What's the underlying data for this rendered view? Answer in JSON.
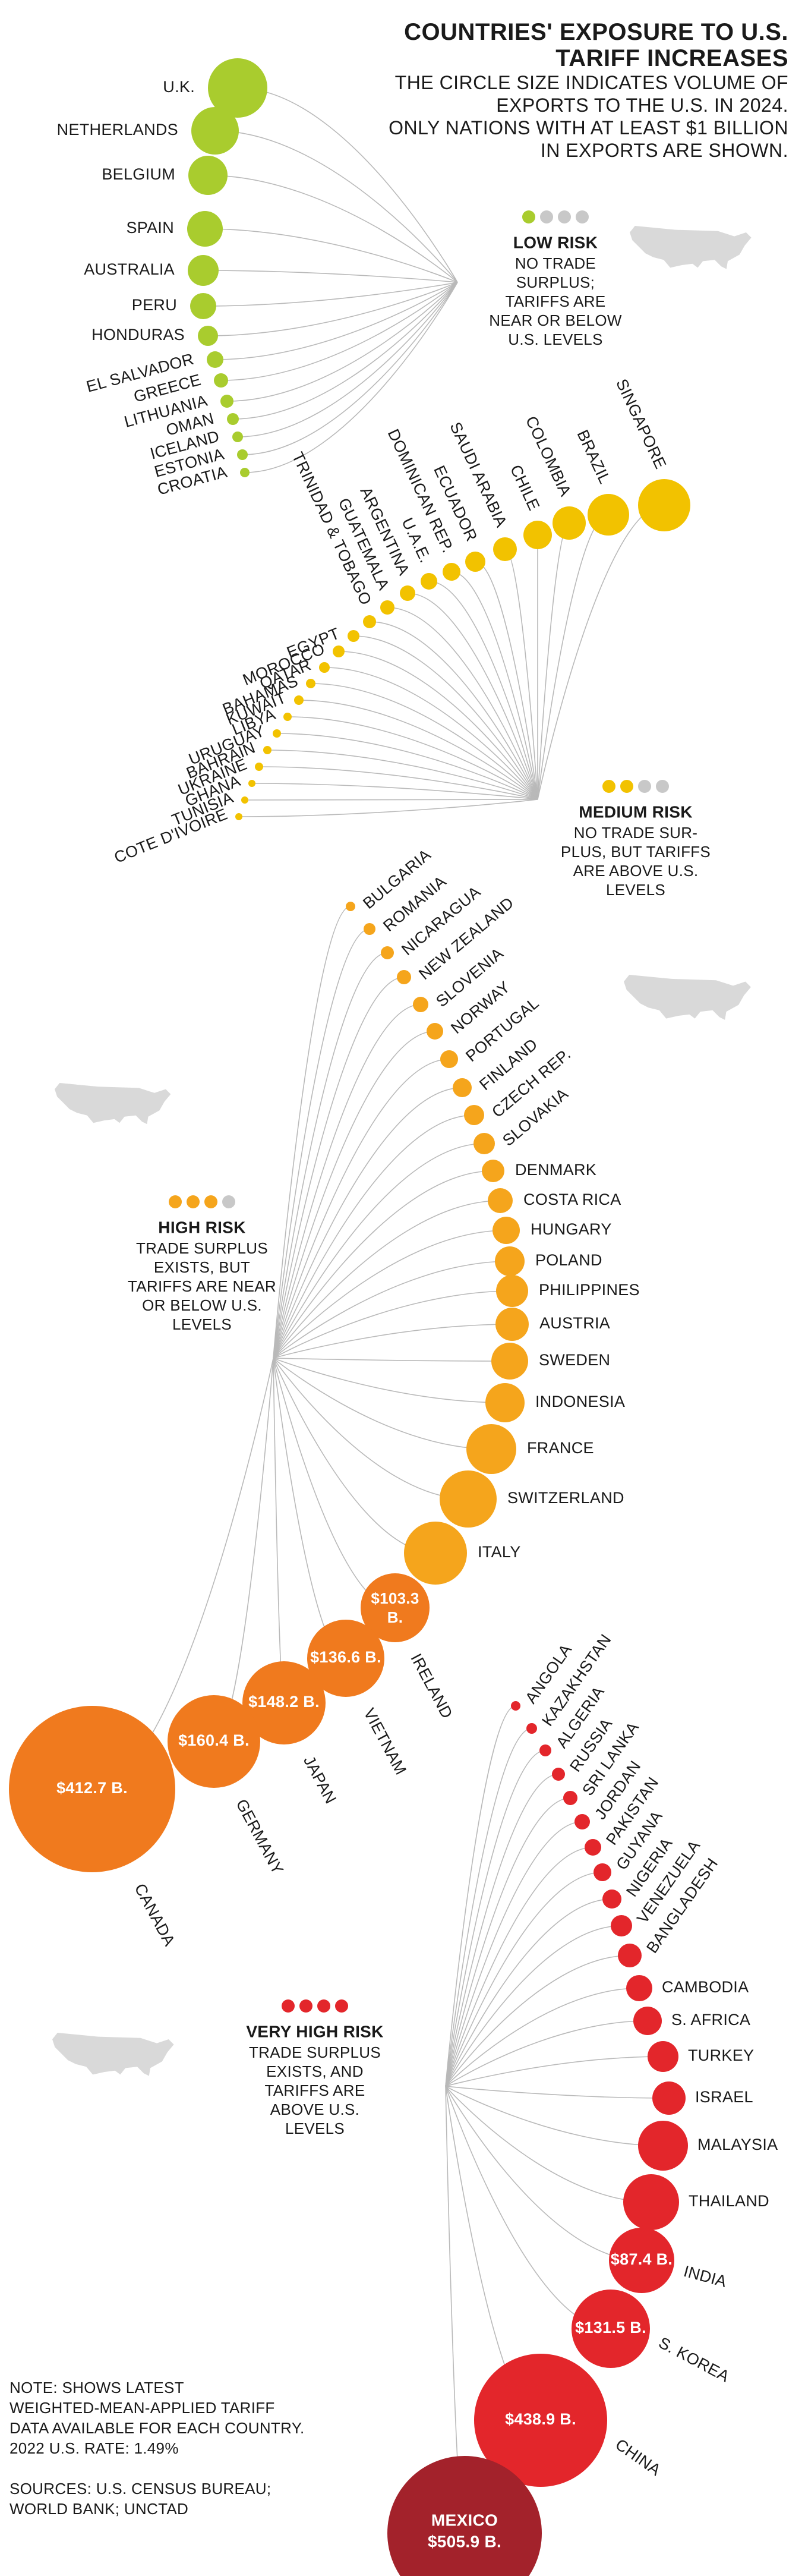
{
  "header": {
    "title_line1": "COUNTRIES' EXPOSURE TO U.S.",
    "title_line2": "TARIFF INCREASES",
    "subtitle_lines": [
      "THE CIRCLE SIZE INDICATES VOLUME OF",
      "EXPORTS TO THE U.S. IN 2024.",
      "ONLY NATIONS WITH AT LEAST $1 BILLION",
      "IN EXPORTS ARE SHOWN."
    ]
  },
  "note": {
    "lines": [
      "NOTE: SHOWS LATEST",
      "WEIGHTED-MEAN-APPLIED TARIFF",
      "DATA AVAILABLE FOR EACH COUNTRY.",
      "2022 U.S. RATE: 1.49%"
    ]
  },
  "sources": {
    "lines": [
      "SOURCES: U.S. CENSUS BUREAU;",
      "WORLD BANK; UNCTAD"
    ]
  },
  "colors": {
    "low": "#a9cc2e",
    "medium": "#f2c200",
    "high": "#f5a51c",
    "high_dark": "#f07a1e",
    "very_high": "#e3262b",
    "very_high_dark": "#a3222b",
    "inactive_dot": "#c8c8c8",
    "stem": "#b9b9b9",
    "map": "#d9d9d9"
  },
  "groups": [
    {
      "id": "low",
      "title": "LOW RISK",
      "desc": [
        "NO TRADE",
        "SURPLUS;",
        "TARIFFS ARE",
        "NEAR OR BELOW",
        "U.S. LEVELS"
      ],
      "active_dots": 1,
      "countries": [
        "U.K.",
        "NETHERLANDS",
        "BELGIUM",
        "SPAIN",
        "AUSTRALIA",
        "PERU",
        "HONDURAS",
        "EL SALVADOR",
        "GREECE",
        "LITHUANIA",
        "OMAN",
        "ICELAND",
        "ESTONIA",
        "CROATIA"
      ]
    },
    {
      "id": "medium",
      "title": "MEDIUM RISK",
      "desc": [
        "NO TRADE SUR-",
        "PLUS, BUT TARIFFS",
        "ARE ABOVE U.S.",
        "LEVELS"
      ],
      "active_dots": 2,
      "countries": [
        "SINGAPORE",
        "BRAZIL",
        "COLOMBIA",
        "CHILE",
        "SAUDI ARABIA",
        "ECUADOR",
        "DOMINICAN REP.",
        "U.A.E.",
        "ARGENTINA",
        "GUATEMALA",
        "TRINIDAD & TOBAGO",
        "EGYPT",
        "MOROCCO",
        "QATAR",
        "BAHAMAS",
        "KUWAIT",
        "LIBYA",
        "URUGUAY",
        "BAHRAIN",
        "UKRAINE",
        "GHANA",
        "TUNISIA",
        "COTE D'IVOIRE"
      ]
    },
    {
      "id": "high",
      "title": "HIGH RISK",
      "desc": [
        "TRADE SURPLUS",
        "EXISTS, BUT",
        "TARIFFS ARE NEAR",
        "OR BELOW U.S.",
        "LEVELS"
      ],
      "active_dots": 3,
      "countries": [
        "BULGARIA",
        "ROMANIA",
        "NICARAGUA",
        "NEW ZEALAND",
        "SLOVENIA",
        "NORWAY",
        "PORTUGAL",
        "FINLAND",
        "CZECH REP.",
        "SLOVAKIA",
        "DENMARK",
        "COSTA RICA",
        "HUNGARY",
        "POLAND",
        "PHILIPPINES",
        "AUSTRIA",
        "SWEDEN",
        "INDONESIA",
        "FRANCE",
        "SWITZERLAND",
        "ITALY",
        "IRELAND",
        "VIETNAM",
        "JAPAN",
        "GERMANY",
        "CANADA"
      ],
      "values": {
        "IRELAND": "$103.3 B.",
        "VIETNAM": "$136.6 B.",
        "JAPAN": "$148.2 B.",
        "GERMANY": "$160.4 B.",
        "CANADA": "$412.7 B."
      }
    },
    {
      "id": "very_high",
      "title": "VERY HIGH RISK",
      "desc": [
        "TRADE SURPLUS",
        "EXISTS, AND",
        "TARIFFS ARE",
        "ABOVE U.S.",
        "LEVELS"
      ],
      "active_dots": 4,
      "countries": [
        "ANGOLA",
        "KAZAKHSTAN",
        "ALGERIA",
        "RUSSIA",
        "SRI LANKA",
        "JORDAN",
        "PAKISTAN",
        "GUYANA",
        "NIGERIA",
        "VENEZUELA",
        "BANGLADESH",
        "CAMBODIA",
        "S. AFRICA",
        "TURKEY",
        "ISRAEL",
        "MALAYSIA",
        "THAILAND",
        "INDIA",
        "S. KOREA",
        "CHINA",
        "MEXICO"
      ],
      "values": {
        "INDIA": "$87.4 B.",
        "S. KOREA": "$131.5 B.",
        "CHINA": "$438.9 B.",
        "MEXICO": "$505.9 B."
      }
    }
  ]
}
